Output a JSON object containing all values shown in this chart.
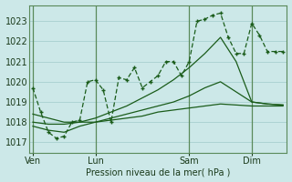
{
  "bg_color": "#cce8e8",
  "grid_color": "#a8d0d0",
  "line_color": "#1a5c1a",
  "ylim": [
    1016.5,
    1023.8
  ],
  "yticks": [
    1017,
    1018,
    1019,
    1020,
    1021,
    1022,
    1023
  ],
  "xlabel": "Pression niveau de la mer( hPa )",
  "xtick_labels": [
    "Ven",
    "Lun",
    "Sam",
    "Dim"
  ],
  "xtick_positions": [
    0,
    8,
    20,
    28
  ],
  "vlines": [
    0,
    8,
    20,
    28
  ],
  "total_points": 33,
  "series1_x": [
    0,
    1,
    2,
    3,
    4,
    5,
    6,
    7,
    8,
    9,
    10,
    11,
    12,
    13,
    14,
    15,
    16,
    17,
    18,
    19,
    20,
    21,
    22,
    23,
    24,
    25,
    26,
    27,
    28,
    29,
    30,
    31,
    32
  ],
  "series1_y": [
    1019.7,
    1018.5,
    1017.5,
    1017.2,
    1017.3,
    1018.0,
    1018.1,
    1020.0,
    1020.1,
    1019.6,
    1018.0,
    1020.2,
    1020.1,
    1020.7,
    1019.7,
    1020.0,
    1020.3,
    1021.0,
    1021.0,
    1020.3,
    1021.0,
    1023.0,
    1023.1,
    1023.3,
    1023.4,
    1022.2,
    1021.4,
    1021.4,
    1022.9,
    1022.3,
    1021.5,
    1021.5,
    1021.5
  ],
  "series2_x": [
    0,
    2,
    4,
    6,
    8,
    10,
    12,
    14,
    16,
    18,
    20,
    22,
    24,
    26,
    28,
    30,
    32
  ],
  "series2_y": [
    1018.4,
    1018.2,
    1018.0,
    1018.0,
    1018.0,
    1018.1,
    1018.2,
    1018.3,
    1018.5,
    1018.6,
    1018.7,
    1018.8,
    1018.9,
    1018.85,
    1018.8,
    1018.8,
    1018.8
  ],
  "series3_x": [
    0,
    2,
    4,
    6,
    8,
    10,
    12,
    14,
    16,
    18,
    20,
    22,
    24,
    26,
    28,
    30,
    32
  ],
  "series3_y": [
    1017.8,
    1017.6,
    1017.5,
    1017.8,
    1018.0,
    1018.2,
    1018.4,
    1018.6,
    1018.8,
    1019.0,
    1019.3,
    1019.7,
    1020.0,
    1019.5,
    1019.0,
    1018.9,
    1018.85
  ],
  "series4_x": [
    0,
    2,
    4,
    6,
    8,
    10,
    12,
    14,
    16,
    18,
    20,
    22,
    24,
    26,
    28,
    30,
    32
  ],
  "series4_y": [
    1018.0,
    1017.9,
    1017.9,
    1018.0,
    1018.2,
    1018.5,
    1018.8,
    1019.2,
    1019.6,
    1020.1,
    1020.7,
    1021.4,
    1022.2,
    1021.0,
    1019.0,
    1018.9,
    1018.85
  ]
}
